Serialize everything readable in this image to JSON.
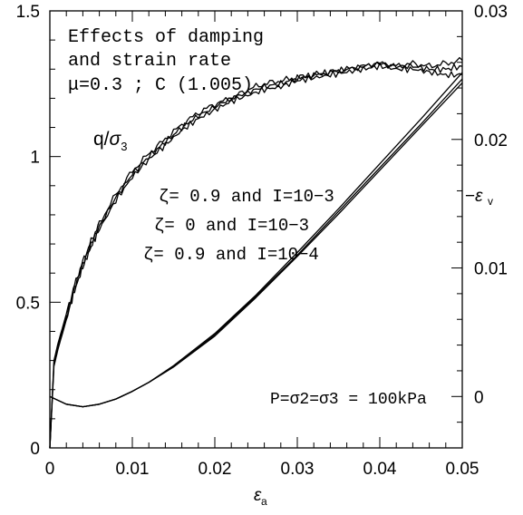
{
  "chart_data": {
    "type": "line",
    "xlabel": "εa",
    "ylabel_left": "",
    "ylabel_right": "−εv",
    "xlim": [
      0,
      0.05
    ],
    "ylim_left": [
      0,
      1.5
    ],
    "ylim_right": [
      -0.004,
      0.03
    ],
    "x_ticks": [
      "0",
      "0.01",
      "0.02",
      "0.03",
      "0.04",
      "0.05"
    ],
    "y_left_ticks": [
      "0",
      "0.5",
      "1",
      "1.5"
    ],
    "y_right_ticks": [
      "0",
      "0.01",
      "0.02",
      "0.03"
    ],
    "grid": false,
    "annotations": {
      "title_line1": "Effects of damping",
      "title_line2": "and strain rate",
      "title_line3": "μ=0.3 ; C (1.005)",
      "q_label": "q/σ3",
      "case1": "ζ= 0.9 and I=10−3",
      "case2": "ζ= 0    and I=10−3",
      "case3": "ζ= 0.9 and I=10−4",
      "pressure": "P=σ2=σ3 = 100kPa"
    },
    "series": [
      {
        "axis": "left",
        "x": [
          0,
          0.0005,
          0.001,
          0.002,
          0.003,
          0.004,
          0.005,
          0.006,
          0.008,
          0.01,
          0.012,
          0.014,
          0.016,
          0.018,
          0.02,
          0.022,
          0.024,
          0.026,
          0.028,
          0.03,
          0.032,
          0.034,
          0.036,
          0.038,
          0.04,
          0.042,
          0.044,
          0.046,
          0.048,
          0.05
        ],
        "values": [
          0,
          0.3,
          0.36,
          0.46,
          0.56,
          0.64,
          0.71,
          0.77,
          0.87,
          0.95,
          1.01,
          1.06,
          1.11,
          1.15,
          1.18,
          1.2,
          1.23,
          1.25,
          1.26,
          1.27,
          1.28,
          1.29,
          1.3,
          1.31,
          1.32,
          1.31,
          1.32,
          1.31,
          1.32,
          1.33
        ]
      },
      {
        "axis": "left",
        "x": [
          0,
          0.0005,
          0.001,
          0.002,
          0.003,
          0.004,
          0.005,
          0.006,
          0.008,
          0.01,
          0.012,
          0.014,
          0.016,
          0.018,
          0.02,
          0.022,
          0.024,
          0.026,
          0.028,
          0.03,
          0.032,
          0.034,
          0.036,
          0.038,
          0.04,
          0.042,
          0.044,
          0.046,
          0.048,
          0.05
        ],
        "values": [
          0,
          0.29,
          0.35,
          0.45,
          0.55,
          0.63,
          0.7,
          0.76,
          0.86,
          0.94,
          1.0,
          1.05,
          1.1,
          1.14,
          1.17,
          1.2,
          1.22,
          1.24,
          1.25,
          1.27,
          1.28,
          1.29,
          1.3,
          1.31,
          1.32,
          1.31,
          1.31,
          1.3,
          1.3,
          1.31
        ]
      },
      {
        "axis": "left",
        "x": [
          0,
          0.0005,
          0.001,
          0.002,
          0.003,
          0.004,
          0.005,
          0.006,
          0.008,
          0.01,
          0.012,
          0.014,
          0.016,
          0.018,
          0.02,
          0.022,
          0.024,
          0.026,
          0.028,
          0.03,
          0.032,
          0.034,
          0.036,
          0.038,
          0.04,
          0.042,
          0.044,
          0.046,
          0.048,
          0.05
        ],
        "values": [
          0,
          0.28,
          0.34,
          0.44,
          0.54,
          0.62,
          0.69,
          0.75,
          0.85,
          0.93,
          0.99,
          1.04,
          1.09,
          1.13,
          1.16,
          1.19,
          1.21,
          1.23,
          1.24,
          1.26,
          1.27,
          1.28,
          1.29,
          1.3,
          1.31,
          1.3,
          1.3,
          1.29,
          1.28,
          1.28
        ]
      },
      {
        "axis": "right",
        "x": [
          0,
          0.002,
          0.004,
          0.006,
          0.008,
          0.01,
          0.012,
          0.015,
          0.02,
          0.025,
          0.03,
          0.035,
          0.04,
          0.045,
          0.05
        ],
        "values": [
          0,
          -0.0006,
          -0.0008,
          -0.0006,
          -0.0002,
          0.0004,
          0.0011,
          0.0024,
          0.0049,
          0.0079,
          0.0112,
          0.0146,
          0.0181,
          0.0216,
          0.0252
        ]
      },
      {
        "axis": "right",
        "x": [
          0,
          0.002,
          0.004,
          0.006,
          0.008,
          0.01,
          0.012,
          0.015,
          0.02,
          0.025,
          0.03,
          0.035,
          0.04,
          0.045,
          0.05
        ],
        "values": [
          0,
          -0.0006,
          -0.0008,
          -0.0006,
          -0.0002,
          0.0004,
          0.0011,
          0.0023,
          0.0048,
          0.0078,
          0.011,
          0.0144,
          0.0178,
          0.0212,
          0.0247
        ]
      },
      {
        "axis": "right",
        "x": [
          0,
          0.002,
          0.004,
          0.006,
          0.008,
          0.01,
          0.012,
          0.015,
          0.02,
          0.025,
          0.03,
          0.035,
          0.04,
          0.045,
          0.05
        ],
        "values": [
          0,
          -0.0006,
          -0.0008,
          -0.0006,
          -0.0002,
          0.0004,
          0.0011,
          0.0023,
          0.0047,
          0.0077,
          0.0109,
          0.0142,
          0.0176,
          0.021,
          0.0244
        ]
      }
    ]
  }
}
